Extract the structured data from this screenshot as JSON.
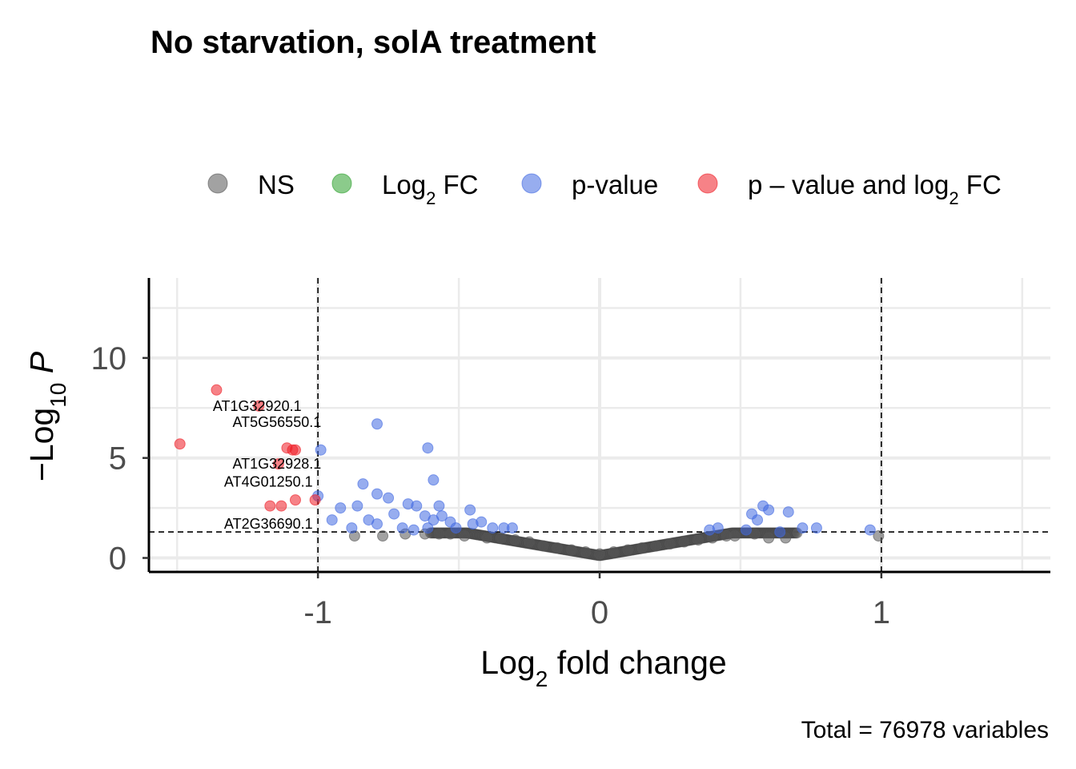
{
  "chart_data": {
    "type": "scatter",
    "title": "No starvation, solA treatment",
    "xlabel": {
      "main": "Log",
      "sub": "2",
      "rest": " fold change"
    },
    "ylabel": {
      "main": "−Log",
      "sub": "10",
      "rest": " P"
    },
    "caption": "Total = 76978 variables",
    "xlim": [
      -1.6,
      1.6
    ],
    "ylim": [
      -0.7,
      14
    ],
    "x_ticks": [
      {
        "value": -1,
        "label": "-1"
      },
      {
        "value": 0,
        "label": "0"
      },
      {
        "value": 1,
        "label": "1"
      }
    ],
    "y_ticks": [
      {
        "value": 0,
        "label": "0"
      },
      {
        "value": 5,
        "label": "5"
      },
      {
        "value": 10,
        "label": "10"
      }
    ],
    "grid": true,
    "legend_position": "top",
    "legend": [
      {
        "key": "NS",
        "label": "NS",
        "sub": "",
        "rest": "",
        "color": "#555555"
      },
      {
        "key": "FC",
        "label": "Log",
        "sub": "2",
        "rest": " FC",
        "color": "#2ca02c"
      },
      {
        "key": "P",
        "label": "p-value",
        "sub": "",
        "rest": "",
        "color": "#4169e1"
      },
      {
        "key": "PFC",
        "label": "p – value and log",
        "sub": "2",
        "rest": " FC",
        "color": "#ee1c25"
      }
    ],
    "thresholds": {
      "fold_change": [
        -1,
        1
      ],
      "p_value_log10": 1.3
    },
    "series": [
      {
        "name": "p – value and log",
        "category": "PFC",
        "points": [
          [
            -1.36,
            8.4
          ],
          [
            -1.21,
            7.6
          ],
          [
            -1.49,
            5.7
          ],
          [
            -1.11,
            5.5
          ],
          [
            -1.09,
            5.4
          ],
          [
            -1.08,
            5.4
          ],
          [
            -1.14,
            4.7
          ],
          [
            -1.17,
            2.6
          ],
          [
            -1.13,
            2.6
          ],
          [
            -1.08,
            2.9
          ],
          [
            -1.01,
            2.9
          ]
        ]
      },
      {
        "name": "p-value",
        "category": "P",
        "points": [
          [
            -0.79,
            6.7
          ],
          [
            -0.61,
            5.5
          ],
          [
            -0.59,
            3.9
          ],
          [
            -0.84,
            3.7
          ],
          [
            -0.79,
            3.2
          ],
          [
            -0.75,
            3.0
          ],
          [
            -0.86,
            2.6
          ],
          [
            -0.68,
            2.7
          ],
          [
            -0.65,
            2.6
          ],
          [
            -0.57,
            2.6
          ],
          [
            -0.46,
            2.4
          ],
          [
            -0.92,
            2.5
          ],
          [
            -0.95,
            1.9
          ],
          [
            -0.82,
            1.9
          ],
          [
            -0.73,
            2.2
          ],
          [
            -0.62,
            2.1
          ],
          [
            -0.56,
            2.1
          ],
          [
            -0.59,
            1.9
          ],
          [
            -0.53,
            1.8
          ],
          [
            -0.45,
            1.7
          ],
          [
            -0.42,
            1.8
          ],
          [
            -0.38,
            1.5
          ],
          [
            -0.34,
            1.5
          ],
          [
            -0.31,
            1.5
          ],
          [
            -0.88,
            1.5
          ],
          [
            -0.79,
            1.7
          ],
          [
            -0.7,
            1.5
          ],
          [
            -0.66,
            1.4
          ],
          [
            -0.51,
            1.5
          ],
          [
            -0.99,
            5.4
          ],
          [
            -1.0,
            3.1
          ],
          [
            -0.61,
            1.5
          ],
          [
            0.39,
            1.4
          ],
          [
            0.42,
            1.5
          ],
          [
            0.56,
            1.9
          ],
          [
            0.58,
            2.6
          ],
          [
            0.6,
            2.4
          ],
          [
            0.67,
            2.3
          ],
          [
            0.54,
            2.2
          ],
          [
            0.72,
            1.5
          ],
          [
            0.77,
            1.5
          ],
          [
            0.96,
            1.4
          ],
          [
            0.64,
            1.3
          ],
          [
            0.52,
            1.4
          ]
        ]
      },
      {
        "name": "NS",
        "category": "NS",
        "points": [
          [
            -0.87,
            1.1
          ],
          [
            -0.77,
            1.1
          ],
          [
            -0.69,
            1.2
          ],
          [
            -0.57,
            1.2
          ],
          [
            -0.48,
            1.1
          ],
          [
            -0.4,
            1.0
          ],
          [
            -0.3,
            0.9
          ],
          [
            -0.2,
            0.6
          ],
          [
            -0.1,
            0.4
          ],
          [
            0.0,
            0.2
          ],
          [
            0.1,
            0.4
          ],
          [
            0.2,
            0.6
          ],
          [
            0.3,
            0.8
          ],
          [
            0.4,
            1.0
          ],
          [
            0.48,
            1.1
          ],
          [
            0.6,
            1.0
          ],
          [
            0.66,
            1.0
          ],
          [
            0.99,
            1.1
          ],
          [
            -0.35,
            1.0
          ],
          [
            -0.25,
            0.8
          ],
          [
            -0.15,
            0.5
          ],
          [
            -0.05,
            0.3
          ],
          [
            0.05,
            0.3
          ],
          [
            0.15,
            0.5
          ],
          [
            0.25,
            0.7
          ],
          [
            0.35,
            0.9
          ],
          [
            0.45,
            1.1
          ],
          [
            0.55,
            1.2
          ],
          [
            -0.53,
            1.2
          ],
          [
            -0.62,
            1.2
          ]
        ]
      }
    ],
    "labels": [
      {
        "text": "AT1G32920.1",
        "x": -1.21,
        "y": 7.6
      },
      {
        "text": "AT5G56550.1",
        "x": -1.14,
        "y": 6.8
      },
      {
        "text": "AT1G32928.1",
        "x": -1.14,
        "y": 4.7
      },
      {
        "text": "AT4G01250.1",
        "x": -1.17,
        "y": 3.8
      },
      {
        "text": "AT2G36690.1",
        "x": -1.17,
        "y": 1.7
      }
    ]
  }
}
